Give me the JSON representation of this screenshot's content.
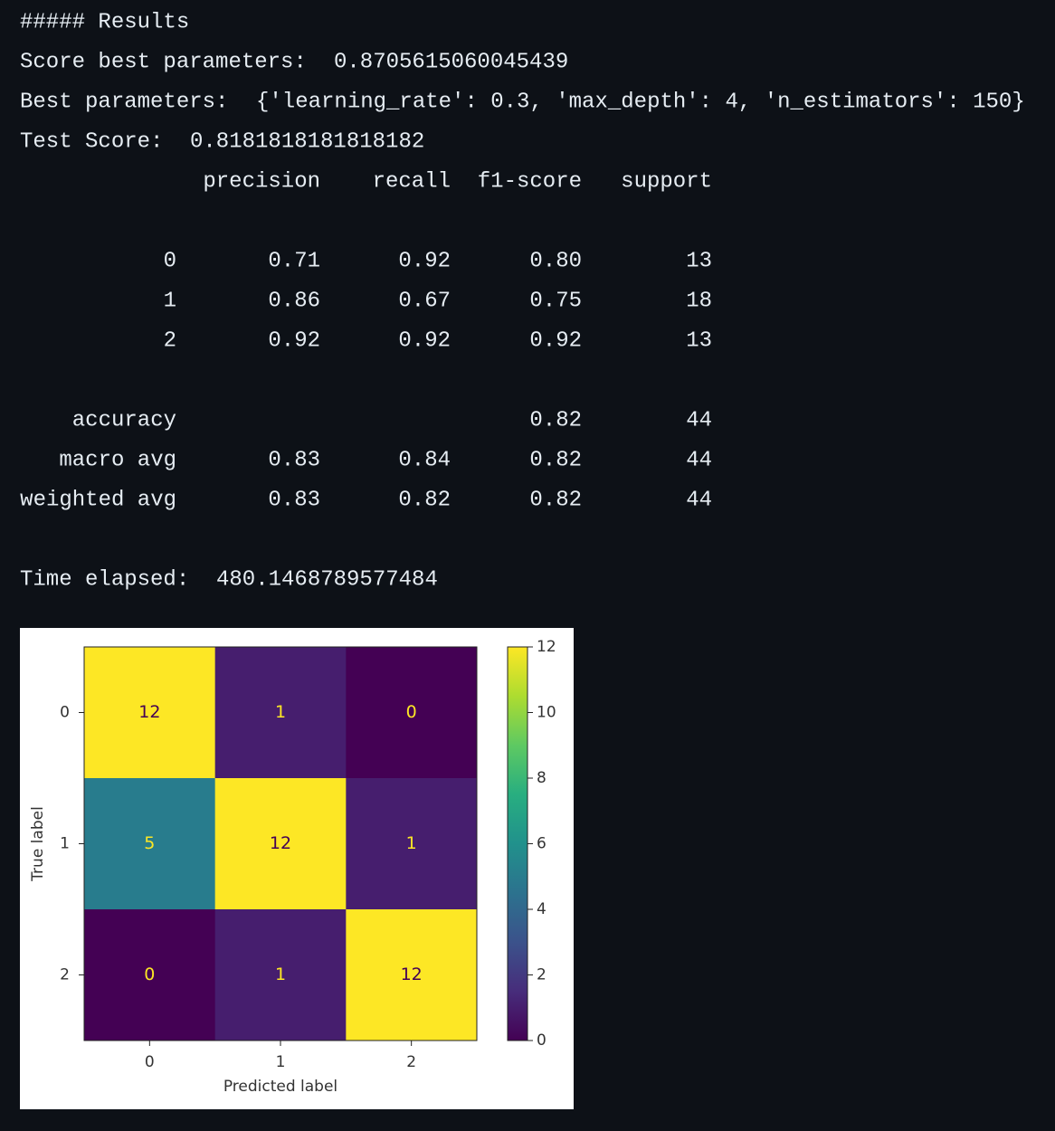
{
  "header": "##### Results",
  "summary": [
    {
      "label": "Score best parameters:",
      "value": "0.8705615060045439"
    },
    {
      "label": "Best parameters:",
      "value": "{'learning_rate': 0.3, 'max_depth': 4, 'n_estimators': 150}"
    },
    {
      "label": "Test Score:",
      "value": "0.8181818181818182"
    }
  ],
  "report": {
    "columns": [
      "precision",
      "recall",
      "f1-score",
      "support"
    ],
    "rows": [
      [
        "0",
        "0.71",
        "0.92",
        "0.80",
        "13"
      ],
      [
        "1",
        "0.86",
        "0.67",
        "0.75",
        "18"
      ],
      [
        "2",
        "0.92",
        "0.92",
        "0.92",
        "13"
      ]
    ],
    "accuracy": {
      "label": "accuracy",
      "f1-score": "0.82",
      "support": "44"
    },
    "averages": [
      [
        "macro avg",
        "0.83",
        "0.84",
        "0.82",
        "44"
      ],
      [
        "weighted avg",
        "0.83",
        "0.82",
        "0.82",
        "44"
      ]
    ]
  },
  "time_elapsed": {
    "label": "Time elapsed:",
    "value": "480.1468789577484"
  },
  "chart_data": {
    "type": "heatmap",
    "x_categories": [
      "0",
      "1",
      "2"
    ],
    "y_categories": [
      "0",
      "1",
      "2"
    ],
    "values": [
      [
        12,
        1,
        0
      ],
      [
        5,
        12,
        1
      ],
      [
        0,
        1,
        12
      ]
    ],
    "xlabel": "Predicted label",
    "ylabel": "True label",
    "colormap": "viridis",
    "clim": [
      0,
      12
    ],
    "cticks": [
      0,
      2,
      4,
      6,
      8,
      10,
      12
    ]
  }
}
